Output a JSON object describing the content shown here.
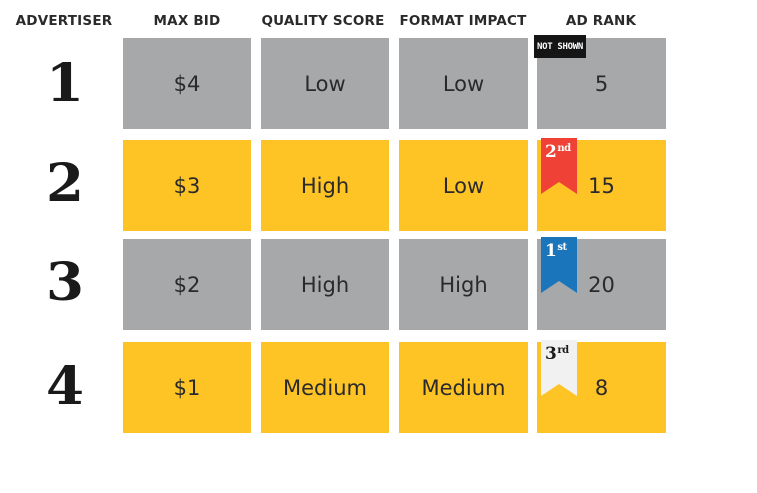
{
  "headers": {
    "advertiser": "ADVERTISER",
    "max_bid": "MAX BID",
    "quality_score": "QUALITY SCORE",
    "format_impact": "FORMAT IMPACT",
    "ad_rank": "AD RANK"
  },
  "rows": [
    {
      "advertiser": "1",
      "max_bid": "$4",
      "quality_score": "Low",
      "format_impact": "Low",
      "ad_rank": "5",
      "color": "gray"
    },
    {
      "advertiser": "2",
      "max_bid": "$3",
      "quality_score": "High",
      "format_impact": "Low",
      "ad_rank": "15",
      "color": "yellow"
    },
    {
      "advertiser": "3",
      "max_bid": "$2",
      "quality_score": "High",
      "format_impact": "High",
      "ad_rank": "20",
      "color": "gray"
    },
    {
      "advertiser": "4",
      "max_bid": "$1",
      "quality_score": "Medium",
      "format_impact": "Medium",
      "ad_rank": "8",
      "color": "yellow"
    }
  ],
  "not_shown_label": "NOT SHOWN",
  "positions": {
    "first": {
      "number": "1",
      "suffix": "st",
      "color": "#1b75bb",
      "text_color": "#ffffff"
    },
    "second": {
      "number": "2",
      "suffix": "nd",
      "color": "#ef4136",
      "text_color": "#ffffff"
    },
    "third": {
      "number": "3",
      "suffix": "rd",
      "color": "#f1f1f1",
      "text_color": "#1a1a1a"
    }
  },
  "colors": {
    "gray_cell": "#a7a8aa",
    "yellow_cell": "#fec426",
    "text": "#2a2a2a"
  }
}
